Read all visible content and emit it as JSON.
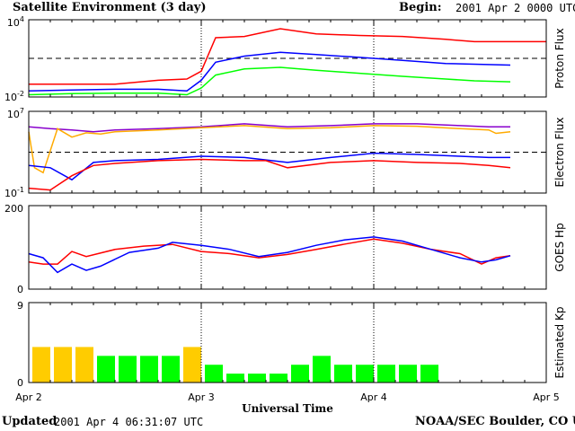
{
  "header": {
    "title": "Satellite Environment (3 day)",
    "begin_label": "Begin:",
    "begin_value": "2001 Apr 2 0000 UTC"
  },
  "footer": {
    "updated_label": "Updated",
    "updated_value": "2001 Apr  4 06:31:07 UTC",
    "credit": "NOAA/SEC Boulder, CO USA"
  },
  "chart_data": [
    {
      "type": "line",
      "panel": "proton",
      "ylabel": "Proton Flux",
      "yscale": "log",
      "ylim": [
        0.01,
        10000
      ],
      "yticks": [
        {
          "value": 10000,
          "base": "10",
          "exp": "4"
        },
        {
          "value": 0.01,
          "base": "10",
          "exp": "-2"
        }
      ],
      "threshold": 10,
      "xlim": [
        0,
        72
      ],
      "series": [
        {
          "color": "#ff0000",
          "points": [
            [
              0,
              0.1
            ],
            [
              6,
              0.1
            ],
            [
              12,
              0.1
            ],
            [
              18,
              0.2
            ],
            [
              22,
              0.25
            ],
            [
              24,
              1
            ],
            [
              26,
              400
            ],
            [
              30,
              500
            ],
            [
              35,
              2000
            ],
            [
              40,
              800
            ],
            [
              46,
              600
            ],
            [
              52,
              500
            ],
            [
              58,
              300
            ],
            [
              62,
              200
            ],
            [
              67,
              200
            ],
            [
              72,
              200
            ]
          ]
        },
        {
          "color": "#0000ff",
          "points": [
            [
              0,
              0.03
            ],
            [
              6,
              0.035
            ],
            [
              12,
              0.04
            ],
            [
              18,
              0.04
            ],
            [
              22,
              0.03
            ],
            [
              24,
              0.2
            ],
            [
              26,
              5
            ],
            [
              30,
              15
            ],
            [
              35,
              30
            ],
            [
              40,
              20
            ],
            [
              46,
              12
            ],
            [
              52,
              7
            ],
            [
              58,
              4
            ],
            [
              62,
              3.5
            ],
            [
              67,
              3
            ]
          ]
        },
        {
          "color": "#00ff00",
          "points": [
            [
              0,
              0.015
            ],
            [
              6,
              0.018
            ],
            [
              12,
              0.02
            ],
            [
              18,
              0.02
            ],
            [
              22,
              0.015
            ],
            [
              24,
              0.05
            ],
            [
              26,
              0.5
            ],
            [
              30,
              1.5
            ],
            [
              35,
              2
            ],
            [
              40,
              1.2
            ],
            [
              46,
              0.7
            ],
            [
              52,
              0.4
            ],
            [
              58,
              0.25
            ],
            [
              62,
              0.18
            ],
            [
              67,
              0.15
            ]
          ]
        }
      ]
    },
    {
      "type": "line",
      "panel": "electron",
      "ylabel": "Electron Flux",
      "yscale": "log",
      "ylim": [
        0.1,
        10000000
      ],
      "yticks": [
        {
          "value": 10000000,
          "base": "10",
          "exp": "7"
        },
        {
          "value": 0.1,
          "base": "10",
          "exp": "-1"
        }
      ],
      "threshold": 1000,
      "xlim": [
        0,
        72
      ],
      "series": [
        {
          "color": "#8800cc",
          "points": [
            [
              0,
              300000
            ],
            [
              3,
              200000
            ],
            [
              6,
              150000
            ],
            [
              9,
              100000
            ],
            [
              12,
              150000
            ],
            [
              18,
              200000
            ],
            [
              24,
              300000
            ],
            [
              30,
              600000
            ],
            [
              36,
              300000
            ],
            [
              42,
              400000
            ],
            [
              48,
              600000
            ],
            [
              54,
              600000
            ],
            [
              60,
              400000
            ],
            [
              64,
              300000
            ],
            [
              65,
              300000
            ],
            [
              67,
              300000
            ]
          ]
        },
        {
          "color": "#ffaa00",
          "points": [
            [
              0,
              100000
            ],
            [
              0.8,
              30
            ],
            [
              2,
              10
            ],
            [
              4,
              200000
            ],
            [
              6,
              30000
            ],
            [
              8,
              80000
            ],
            [
              10,
              60000
            ],
            [
              12,
              100000
            ],
            [
              18,
              150000
            ],
            [
              24,
              250000
            ],
            [
              30,
              400000
            ],
            [
              36,
              200000
            ],
            [
              42,
              250000
            ],
            [
              48,
              400000
            ],
            [
              54,
              350000
            ],
            [
              60,
              200000
            ],
            [
              64,
              150000
            ],
            [
              65,
              70000
            ],
            [
              67,
              100000
            ]
          ]
        },
        {
          "color": "#0000ff",
          "points": [
            [
              0,
              50
            ],
            [
              3,
              30
            ],
            [
              6,
              2
            ],
            [
              9,
              100
            ],
            [
              12,
              150
            ],
            [
              18,
              200
            ],
            [
              24,
              400
            ],
            [
              30,
              300
            ],
            [
              36,
              100
            ],
            [
              42,
              300
            ],
            [
              48,
              800
            ],
            [
              54,
              600
            ],
            [
              60,
              400
            ],
            [
              64,
              300
            ],
            [
              67,
              300
            ]
          ]
        },
        {
          "color": "#ff0000",
          "points": [
            [
              0,
              0.3
            ],
            [
              3,
              0.2
            ],
            [
              6,
              5
            ],
            [
              9,
              50
            ],
            [
              12,
              80
            ],
            [
              18,
              150
            ],
            [
              24,
              200
            ],
            [
              30,
              150
            ],
            [
              33,
              150
            ],
            [
              36,
              30
            ],
            [
              42,
              100
            ],
            [
              48,
              150
            ],
            [
              54,
              100
            ],
            [
              60,
              80
            ],
            [
              64,
              50
            ],
            [
              67,
              30
            ]
          ]
        }
      ]
    },
    {
      "type": "line",
      "panel": "hp",
      "ylabel": "GOES Hp",
      "yscale": "linear",
      "ylim": [
        0,
        200
      ],
      "yticks": [
        {
          "value": 200,
          "label": "200"
        },
        {
          "value": 0,
          "label": "0"
        }
      ],
      "xlim": [
        0,
        72
      ],
      "series": [
        {
          "color": "#ff0000",
          "points": [
            [
              0,
              65
            ],
            [
              2,
              60
            ],
            [
              4,
              60
            ],
            [
              6,
              90
            ],
            [
              8,
              78
            ],
            [
              12,
              95
            ],
            [
              16,
              103
            ],
            [
              20,
              107
            ],
            [
              24,
              90
            ],
            [
              28,
              85
            ],
            [
              32,
              75
            ],
            [
              36,
              83
            ],
            [
              40,
              95
            ],
            [
              44,
              108
            ],
            [
              48,
              120
            ],
            [
              52,
              110
            ],
            [
              56,
              95
            ],
            [
              60,
              85
            ],
            [
              63,
              60
            ],
            [
              65,
              75
            ],
            [
              67,
              80
            ]
          ]
        },
        {
          "color": "#0000ff",
          "points": [
            [
              0,
              85
            ],
            [
              2,
              75
            ],
            [
              4,
              40
            ],
            [
              6,
              60
            ],
            [
              8,
              45
            ],
            [
              10,
              55
            ],
            [
              14,
              88
            ],
            [
              18,
              98
            ],
            [
              20,
              112
            ],
            [
              24,
              105
            ],
            [
              28,
              95
            ],
            [
              32,
              78
            ],
            [
              36,
              88
            ],
            [
              40,
              105
            ],
            [
              44,
              118
            ],
            [
              48,
              125
            ],
            [
              52,
              115
            ],
            [
              56,
              95
            ],
            [
              60,
              75
            ],
            [
              63,
              65
            ],
            [
              65,
              70
            ],
            [
              67,
              80
            ]
          ]
        }
      ]
    },
    {
      "type": "bar",
      "panel": "kp",
      "ylabel": "Estimated Kp",
      "ylim": [
        0,
        9
      ],
      "yticks": [
        {
          "value": 9,
          "label": "9"
        },
        {
          "value": 0,
          "label": "0"
        }
      ],
      "xlim": [
        0,
        72
      ],
      "bar_width_hours": 3,
      "values": [
        4,
        4,
        4,
        3,
        3,
        3,
        3,
        4,
        2,
        1,
        1,
        1,
        2,
        3,
        2,
        2,
        2,
        2,
        2
      ],
      "colors": [
        "#ffcc00",
        "#ffcc00",
        "#ffcc00",
        "#00ff00",
        "#00ff00",
        "#00ff00",
        "#00ff00",
        "#ffcc00",
        "#00ff00",
        "#00ff00",
        "#00ff00",
        "#00ff00",
        "#00ff00",
        "#00ff00",
        "#00ff00",
        "#00ff00",
        "#00ff00",
        "#00ff00",
        "#00ff00"
      ]
    }
  ],
  "x_axis": {
    "label": "Universal Time",
    "ticks": [
      {
        "hour": 0,
        "label": "Apr 2"
      },
      {
        "hour": 24,
        "label": "Apr 3"
      },
      {
        "hour": 48,
        "label": "Apr 4"
      },
      {
        "hour": 72,
        "label": "Apr 5"
      }
    ],
    "day_markers": [
      24,
      48
    ]
  }
}
